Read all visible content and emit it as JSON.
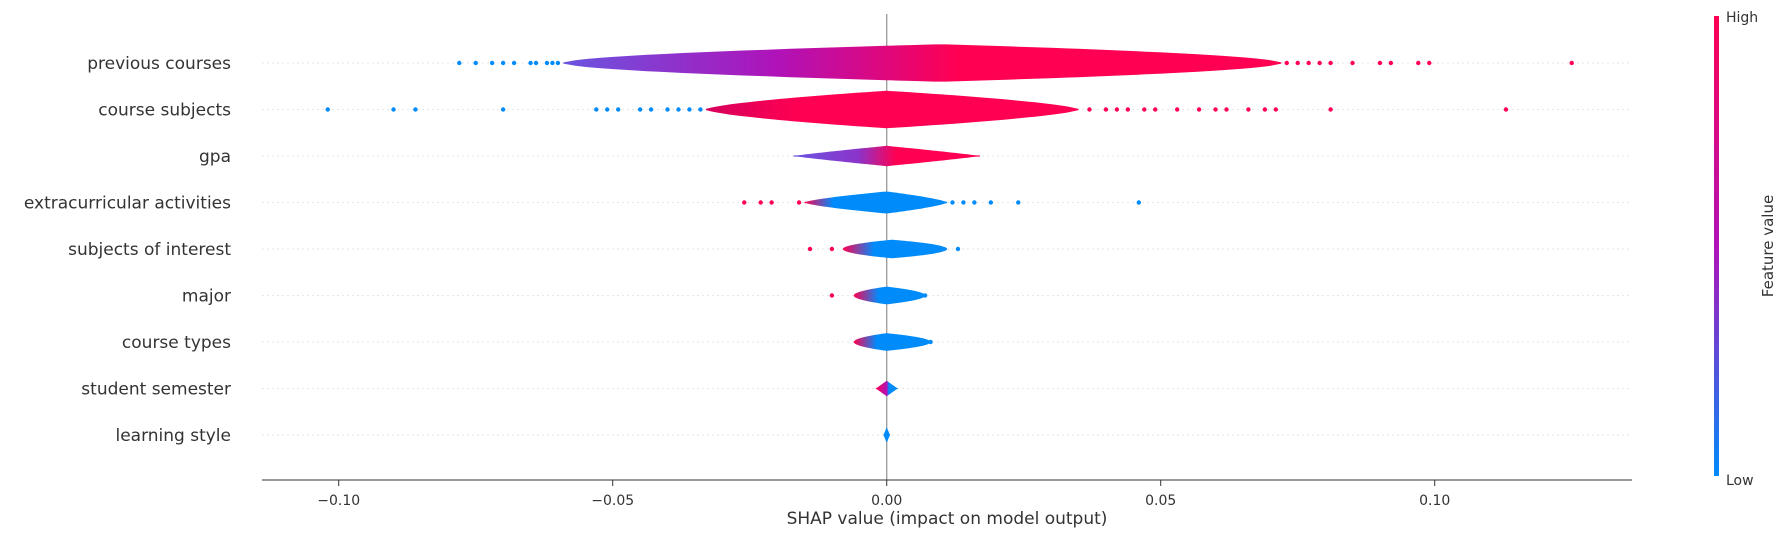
{
  "chart_data": {
    "type": "violin",
    "xlabel": "SHAP value (impact on model output)",
    "xlim": [
      -0.114,
      0.136
    ],
    "xticks": [
      -0.1,
      -0.05,
      0.0,
      0.05,
      0.1
    ],
    "xtick_labels": [
      "−0.10",
      "−0.05",
      "0.00",
      "0.05",
      "0.10"
    ],
    "colorbar": {
      "label": "Feature value",
      "high_label": "High",
      "low_label": "Low",
      "low_color": "#008bfb",
      "high_color": "#ff0052"
    },
    "features": [
      {
        "name": "previous courses",
        "range": [
          -0.059,
          0.072
        ],
        "peak": 0.01,
        "max_half_width": 0.85,
        "shape": 0.55,
        "gradient": [
          [
            0,
            "#6a55e0"
          ],
          [
            0.3,
            "#b012b8"
          ],
          [
            0.55,
            "#ff0052"
          ],
          [
            1,
            "#ff0052"
          ]
        ],
        "outliers_low": [
          -0.078,
          -0.075,
          -0.072,
          -0.07,
          -0.068,
          -0.065,
          -0.064,
          -0.062,
          -0.061,
          -0.06
        ],
        "outliers_high": [
          0.073,
          0.075,
          0.077,
          0.079,
          0.081,
          0.085,
          0.09,
          0.092,
          0.097,
          0.099,
          0.125
        ]
      },
      {
        "name": "course subjects",
        "range": [
          -0.033,
          0.035
        ],
        "peak": 0.0,
        "max_half_width": 0.85,
        "shape": 0.65,
        "gradient": [
          [
            0,
            "#d6005c"
          ],
          [
            0.25,
            "#ff0052"
          ],
          [
            1,
            "#ff0052"
          ]
        ],
        "outliers_low": [
          -0.102,
          -0.09,
          -0.086,
          -0.07,
          -0.053,
          -0.051,
          -0.049,
          -0.045,
          -0.043,
          -0.04,
          -0.038,
          -0.036,
          -0.034
        ],
        "outliers_high": [
          0.037,
          0.04,
          0.042,
          0.044,
          0.047,
          0.049,
          0.053,
          0.057,
          0.06,
          0.062,
          0.066,
          0.069,
          0.071,
          0.081,
          0.113
        ]
      },
      {
        "name": "gpa",
        "range": [
          -0.017,
          0.017
        ],
        "peak": 0.0,
        "max_half_width": 0.46,
        "shape": 0.9,
        "gradient": [
          [
            0,
            "#6a55e0"
          ],
          [
            0.35,
            "#8c33c9"
          ],
          [
            0.55,
            "#ff0052"
          ],
          [
            1,
            "#ff0052"
          ]
        ],
        "outliers_low": [],
        "outliers_high": []
      },
      {
        "name": "extracurricular activities",
        "range": [
          -0.015,
          0.011
        ],
        "peak": 0.0,
        "max_half_width": 0.5,
        "shape": 0.7,
        "gradient": [
          [
            0,
            "#ff0052"
          ],
          [
            0.2,
            "#008bfb"
          ],
          [
            1,
            "#008bfb"
          ]
        ],
        "outliers_low": [
          -0.026,
          -0.023,
          -0.021,
          -0.016
        ],
        "outliers_high": [
          0.012,
          0.014,
          0.016,
          0.019,
          0.024,
          0.046
        ]
      },
      {
        "name": "subjects of interest",
        "range": [
          -0.008,
          0.011
        ],
        "peak": 0.001,
        "max_half_width": 0.42,
        "shape": 0.5,
        "gradient": [
          [
            0,
            "#ff0052"
          ],
          [
            0.3,
            "#008bfb"
          ],
          [
            1,
            "#008bfb"
          ]
        ],
        "outliers_low": [
          -0.014,
          -0.01
        ],
        "outliers_high": [
          0.013
        ]
      },
      {
        "name": "major",
        "range": [
          -0.006,
          0.007
        ],
        "peak": 0.0,
        "max_half_width": 0.4,
        "shape": 0.5,
        "gradient": [
          [
            0,
            "#ff0052"
          ],
          [
            0.35,
            "#008bfb"
          ],
          [
            1,
            "#008bfb"
          ]
        ],
        "outliers_low": [
          -0.01
        ],
        "outliers_high": [
          0.007
        ]
      },
      {
        "name": "course types",
        "range": [
          -0.006,
          0.008
        ],
        "peak": 0.0,
        "max_half_width": 0.4,
        "shape": 0.5,
        "gradient": [
          [
            0,
            "#ff0052"
          ],
          [
            0.3,
            "#008bfb"
          ],
          [
            1,
            "#008bfb"
          ]
        ],
        "outliers_low": [],
        "outliers_high": [
          0.008
        ]
      },
      {
        "name": "student semester",
        "range": [
          -0.002,
          0.002
        ],
        "peak": 0.0,
        "max_half_width": 0.35,
        "shape": 1.0,
        "gradient": [
          [
            0,
            "#ff0052"
          ],
          [
            0.5,
            "#b012b8"
          ],
          [
            0.6,
            "#008bfb"
          ],
          [
            1,
            "#008bfb"
          ]
        ],
        "outliers_low": [],
        "outliers_high": []
      },
      {
        "name": "learning style",
        "range": [
          -0.0006,
          0.0006
        ],
        "peak": 0.0,
        "max_half_width": 0.35,
        "shape": 1.0,
        "gradient": [
          [
            0,
            "#008bfb"
          ],
          [
            1,
            "#008bfb"
          ]
        ],
        "outliers_low": [],
        "outliers_high": []
      }
    ]
  }
}
